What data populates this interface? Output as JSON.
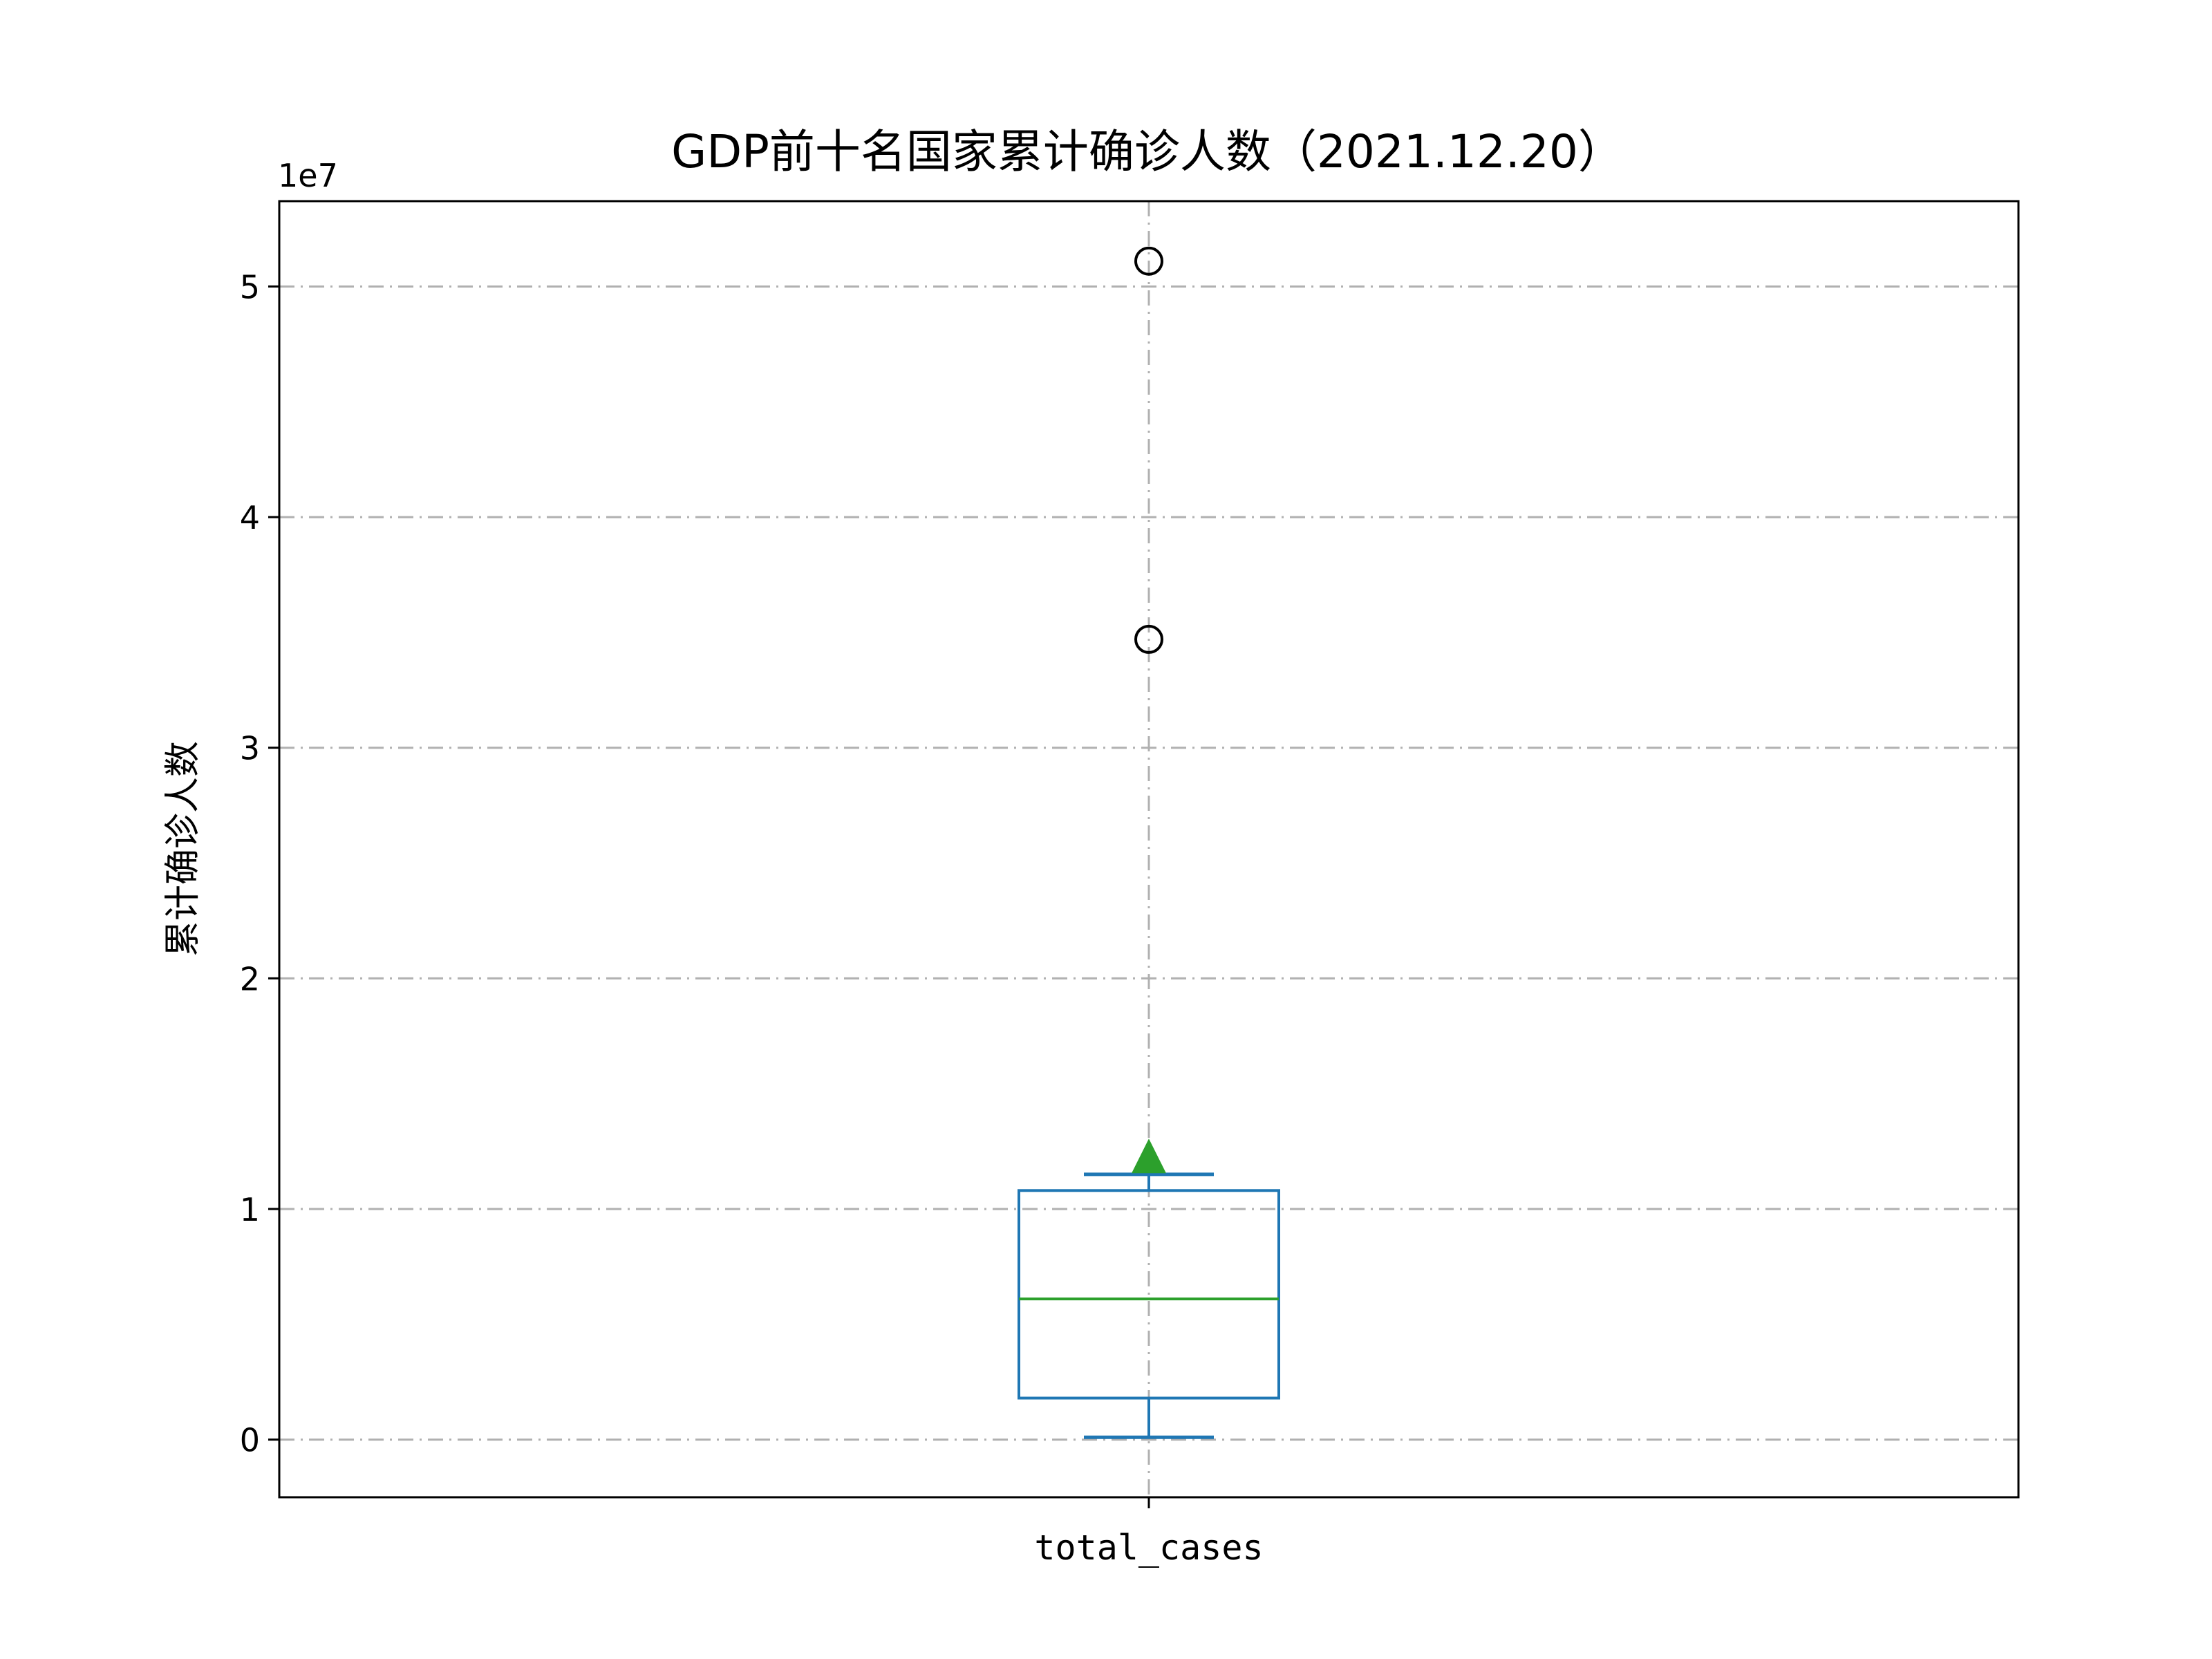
{
  "chart_data": {
    "type": "box",
    "title": "GDP前十名国家累计确诊人数（2021.12.20）",
    "ylabel": "累计确诊人数",
    "xlabel": "",
    "offset_text": "1e7",
    "categories": [
      "total_cases"
    ],
    "ylim": [
      -2500000,
      53700000
    ],
    "yticks": [
      0,
      10000000,
      20000000,
      30000000,
      40000000,
      50000000
    ],
    "ytick_labels": [
      "0",
      "1",
      "2",
      "3",
      "4",
      "5"
    ],
    "grid": true,
    "grid_style": "dashdot",
    "box": {
      "name": "total_cases",
      "whisker_low": 100000,
      "q1": 1800000,
      "median": 6100000,
      "q3": 10800000,
      "whisker_high": 11500000,
      "mean": 12300000,
      "outliers": [
        34700000,
        51100000
      ]
    },
    "colors": {
      "box": "#1f77b4",
      "median": "#2ca02c",
      "mean_marker": "#2ca02c",
      "outlier_edge": "#000000",
      "grid": "#b0b0b0"
    }
  }
}
